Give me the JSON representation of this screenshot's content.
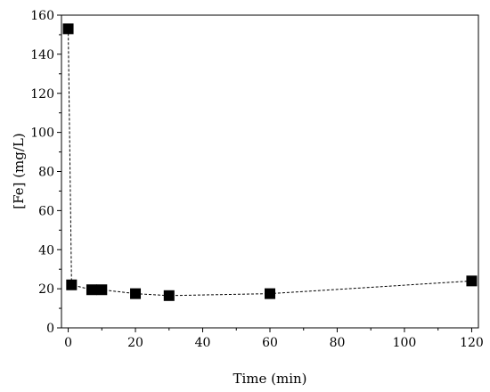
{
  "chart_data": {
    "type": "scatter",
    "xlabel": "Time (min)",
    "ylabel": "[Fe] (mg/L)",
    "xlim": [
      -2,
      122
    ],
    "ylim": [
      0,
      160
    ],
    "x_ticks": [
      0,
      20,
      40,
      60,
      80,
      100,
      120
    ],
    "y_ticks": [
      0,
      20,
      40,
      60,
      80,
      100,
      120,
      140,
      160
    ],
    "grid": false,
    "legend": "none",
    "series": [
      {
        "marker": "square",
        "line_style": "dashed",
        "color": "#000000",
        "x": [
          0,
          1,
          7,
          10,
          20,
          30,
          60,
          120
        ],
        "y": [
          153,
          22,
          19.5,
          19.5,
          17.5,
          16.5,
          17.5,
          24
        ]
      }
    ]
  }
}
